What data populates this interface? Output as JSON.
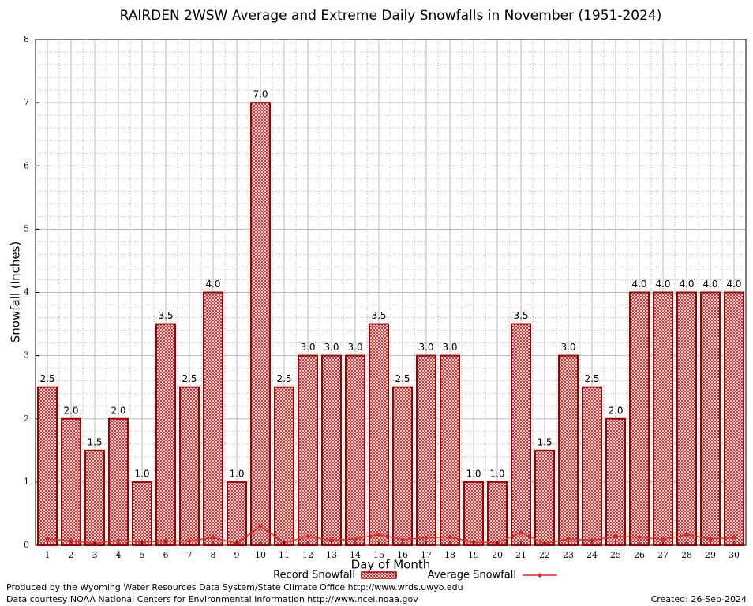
{
  "chart_data": {
    "type": "bar",
    "title": "RAIRDEN 2WSW Average and Extreme Daily Snowfalls in November (1951-2024)",
    "x_label": "Day of Month",
    "y_label": "Snowfall (Inches)",
    "categories": [
      "1",
      "2",
      "3",
      "4",
      "5",
      "6",
      "7",
      "8",
      "9",
      "10",
      "11",
      "12",
      "13",
      "14",
      "15",
      "16",
      "17",
      "18",
      "19",
      "20",
      "21",
      "22",
      "23",
      "24",
      "25",
      "26",
      "27",
      "28",
      "29",
      "30"
    ],
    "series": [
      {
        "name": "Record Snowfall",
        "kind": "bar",
        "color": "#a00000",
        "values": [
          2.5,
          2.0,
          1.5,
          2.0,
          1.0,
          3.5,
          2.5,
          4.0,
          1.0,
          7.0,
          2.5,
          3.0,
          3.0,
          3.0,
          3.5,
          2.5,
          3.0,
          3.0,
          1.0,
          1.0,
          3.5,
          1.5,
          3.0,
          2.5,
          2.0,
          4.0,
          4.0,
          4.0,
          4.0,
          4.0
        ],
        "value_labels": [
          "2.5",
          "2.0",
          "1.5",
          "2.0",
          "1.0",
          "3.5",
          "2.5",
          "4.0",
          "1.0",
          "7.0",
          "2.5",
          "3.0",
          "3.0",
          "3.0",
          "3.5",
          "2.5",
          "3.0",
          "3.0",
          "1.0",
          "1.0",
          "3.5",
          "1.5",
          "3.0",
          "2.5",
          "2.0",
          "4.0",
          "4.0",
          "4.0",
          "4.0",
          "4.0"
        ]
      },
      {
        "name": "Average Snowfall",
        "kind": "line",
        "color": "#ee2222",
        "values": [
          0.1,
          0.07,
          0.03,
          0.08,
          0.05,
          0.07,
          0.07,
          0.12,
          0.03,
          0.3,
          0.04,
          0.14,
          0.08,
          0.1,
          0.17,
          0.09,
          0.12,
          0.13,
          0.05,
          0.04,
          0.2,
          0.03,
          0.1,
          0.08,
          0.14,
          0.13,
          0.09,
          0.17,
          0.1,
          0.12
        ]
      }
    ],
    "ylim": [
      0,
      8
    ],
    "yticks": [
      0,
      1,
      2,
      3,
      4,
      5,
      6,
      7,
      8
    ],
    "grid": true,
    "credits": [
      "Produced by the Wyoming Water Resources Data System/State Climate Office http://www.wrds.uwyo.edu",
      "Data courtesy NOAA National Centers for Environmental Information http://www.ncei.noaa.gov"
    ],
    "created": "Created:  26-Sep-2024"
  }
}
